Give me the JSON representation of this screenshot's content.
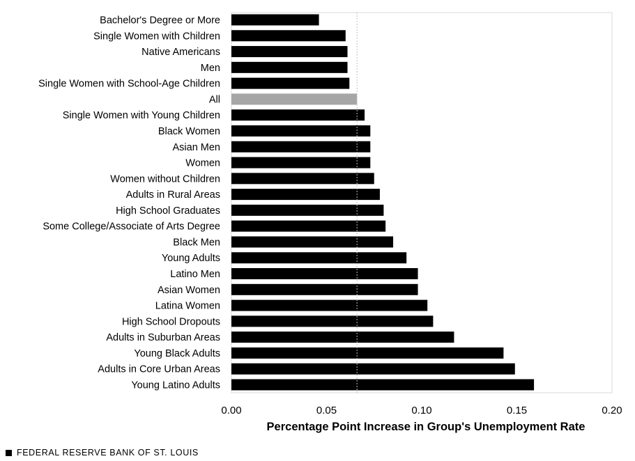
{
  "chart_data": {
    "type": "bar",
    "orientation": "horizontal",
    "categories": [
      "Bachelor's Degree or More",
      "Single Women with Children",
      "Native Americans",
      "Men",
      "Single Women with School-Age Children",
      "All",
      "Single Women with Young Children",
      "Black Women",
      "Asian Men",
      "Women",
      "Women without Children",
      "Adults in Rural Areas",
      "High School Graduates",
      "Some College/Associate of Arts Degree",
      "Black Men",
      "Young Adults",
      "Latino Men",
      "Asian Women",
      "Latina Women",
      "High School Dropouts",
      "Adults in Suburban Areas",
      "Young Black Adults",
      "Adults in Core Urban Areas",
      "Young Latino Adults"
    ],
    "values": [
      0.046,
      0.06,
      0.061,
      0.061,
      0.062,
      0.066,
      0.07,
      0.073,
      0.073,
      0.073,
      0.075,
      0.078,
      0.08,
      0.081,
      0.085,
      0.092,
      0.098,
      0.098,
      0.103,
      0.106,
      0.117,
      0.143,
      0.149,
      0.159
    ],
    "highlight_category": "All",
    "reference_line_value": 0.066,
    "xlabel": "Percentage Point Increase in Group's Unemployment Rate",
    "ylabel": "",
    "xlim": [
      0,
      0.2
    ],
    "xticks": [
      "0.00",
      "0.05",
      "0.10",
      "0.15",
      "0.20"
    ],
    "xtick_values": [
      0,
      0.05,
      0.1,
      0.15,
      0.2
    ],
    "grid": false,
    "legend": "none",
    "colors": {
      "bar": "#000000",
      "highlight": "#a6a6a6",
      "reference_line": "#bfbfbf",
      "frame": "#d9d9d9"
    }
  },
  "source": "FEDERAL RESERVE BANK OF ST. LOUIS"
}
